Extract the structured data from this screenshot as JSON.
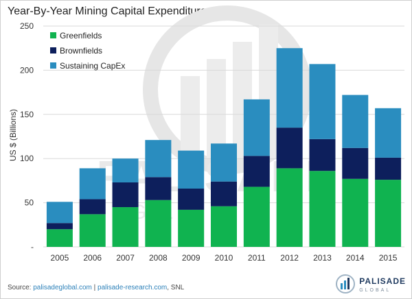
{
  "chart_data": {
    "type": "bar",
    "stacked": true,
    "title": "Year-By-Year Mining Capital Expenditures",
    "ylabel": "US $ (Billions)",
    "xlabel": "",
    "categories": [
      "2005",
      "2006",
      "2007",
      "2008",
      "2009",
      "2010",
      "2011",
      "2012",
      "2013",
      "2014",
      "2015"
    ],
    "series": [
      {
        "name": "Greenfields",
        "color": "#10b350",
        "values": [
          20,
          37,
          45,
          53,
          42,
          46,
          68,
          89,
          86,
          77,
          76
        ]
      },
      {
        "name": "Brownfields",
        "color": "#0d1f5c",
        "values": [
          7,
          17,
          28,
          26,
          24,
          28,
          35,
          46,
          36,
          35,
          25
        ]
      },
      {
        "name": "Sustaining CapEx",
        "color": "#2a8dbf",
        "values": [
          24,
          35,
          27,
          42,
          43,
          43,
          64,
          90,
          85,
          60,
          56
        ]
      }
    ],
    "ylim": [
      0,
      250
    ],
    "yticks": [
      "-",
      "50",
      "100",
      "150",
      "200",
      "250"
    ],
    "grid": true,
    "legend": "top-left"
  },
  "watermark": {
    "text_top": "PALISADE",
    "text_bottom": "GLOBAL"
  },
  "footer": {
    "source_prefix": "Source:",
    "link1": "palisadeglobal.com",
    "sep": "|",
    "link2": "palisade-research.com",
    "tail": ", SNL"
  },
  "logo": {
    "brand": "PALISADE",
    "sub": "GLOBAL",
    "mark_color": "#2a8dbf"
  }
}
